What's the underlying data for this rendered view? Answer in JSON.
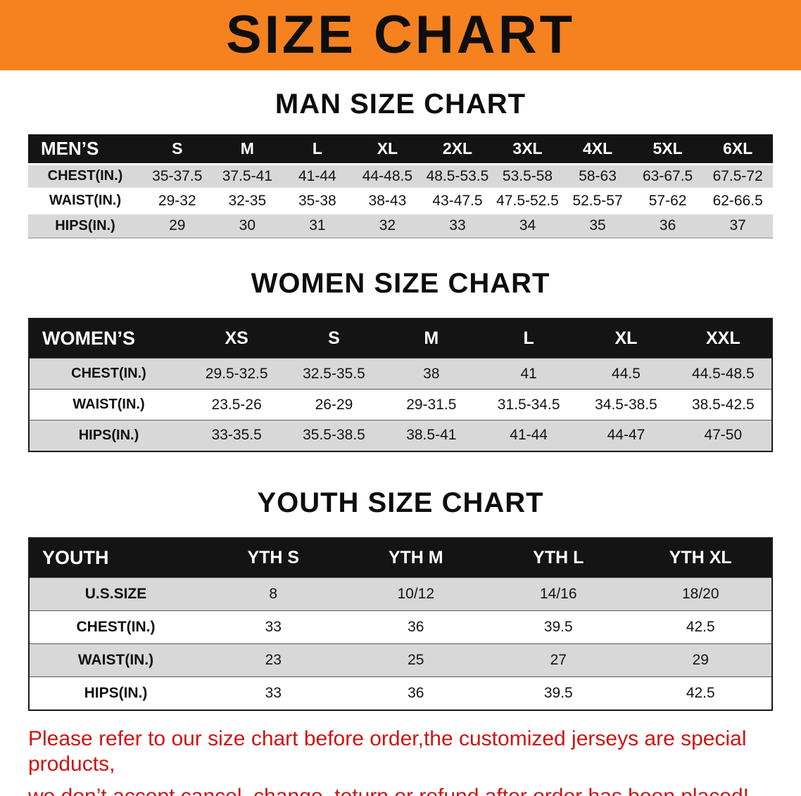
{
  "banner": {
    "title": "SIZE CHART"
  },
  "colors": {
    "banner_bg": "#f5821f",
    "header_bg": "#141414",
    "row_alt": "#d8d8d8",
    "footer_text": "#d01212"
  },
  "sections": [
    {
      "id": "men",
      "heading": "MAN SIZE CHART",
      "columns": [
        "MEN’S",
        "S",
        "M",
        "L",
        "XL",
        "2XL",
        "3XL",
        "4XL",
        "5XL",
        "6XL"
      ],
      "rows": [
        [
          "CHEST(IN.)",
          "35-37.5",
          "37.5-41",
          "41-44",
          "44-48.5",
          "48.5-53.5",
          "53.5-58",
          "58-63",
          "63-67.5",
          "67.5-72"
        ],
        [
          "WAIST(IN.)",
          "29-32",
          "32-35",
          "35-38",
          "38-43",
          "43-47.5",
          "47.5-52.5",
          "52.5-57",
          "57-62",
          "62-66.5"
        ],
        [
          "HIPS(IN.)",
          "29",
          "30",
          "31",
          "32",
          "33",
          "34",
          "35",
          "36",
          "37"
        ]
      ]
    },
    {
      "id": "women",
      "heading": "WOMEN SIZE CHART",
      "columns": [
        "WOMEN’S",
        "XS",
        "S",
        "M",
        "L",
        "XL",
        "XXL"
      ],
      "rows": [
        [
          "CHEST(IN.)",
          "29.5-32.5",
          "32.5-35.5",
          "38",
          "41",
          "44.5",
          "44.5-48.5"
        ],
        [
          "WAIST(IN.)",
          "23.5-26",
          "26-29",
          "29-31.5",
          "31.5-34.5",
          "34.5-38.5",
          "38.5-42.5"
        ],
        [
          "HIPS(IN.)",
          "33-35.5",
          "35.5-38.5",
          "38.5-41",
          "41-44",
          "44-47",
          "47-50"
        ]
      ]
    },
    {
      "id": "youth",
      "heading": "YOUTH SIZE CHART",
      "columns": [
        "YOUTH",
        "YTH S",
        "YTH M",
        "YTH L",
        "YTH XL"
      ],
      "rows": [
        [
          "U.S.SIZE",
          "8",
          "10/12",
          "14/16",
          "18/20"
        ],
        [
          "CHEST(IN.)",
          "33",
          "36",
          "39.5",
          "42.5"
        ],
        [
          "WAIST(IN.)",
          "23",
          "25",
          "27",
          "29"
        ],
        [
          "HIPS(IN.)",
          "33",
          "36",
          "39.5",
          "42.5"
        ]
      ]
    }
  ],
  "footer": {
    "lines": [
      "Please refer to our size chart before order,the customized jerseys are special products,",
      "we don’t accept cancel, change, teturn or refund after order has been placed!"
    ]
  }
}
